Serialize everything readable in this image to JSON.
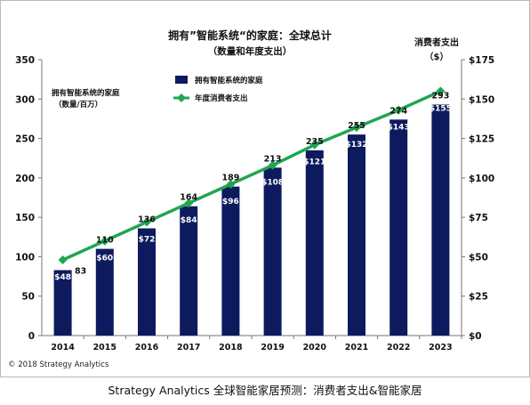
{
  "chart_data": {
    "type": "bar",
    "title": "拥有”智能系统“的家庭：全球总计",
    "subtitle": "（数量和年度支出）",
    "categories": [
      "2014",
      "2015",
      "2016",
      "2017",
      "2018",
      "2019",
      "2020",
      "2021",
      "2022",
      "2023"
    ],
    "series": [
      {
        "name": "拥有智能系统的家庭",
        "type": "bar",
        "axis": "left",
        "values": [
          83,
          110,
          136,
          164,
          189,
          213,
          235,
          255,
          274,
          293
        ],
        "labels": [
          "83",
          "110",
          "136",
          "164",
          "189",
          "213",
          "235",
          "255",
          "274",
          "293"
        ]
      },
      {
        "name": "年度消费者支出",
        "type": "line",
        "axis": "right",
        "values": [
          48,
          60,
          72,
          84,
          96,
          108,
          121,
          132,
          143,
          155
        ],
        "labels": [
          "$48",
          "$60",
          "$72",
          "$84",
          "$96",
          "$108",
          "$121",
          "$132",
          "$143",
          "$155"
        ]
      }
    ],
    "ylabel_left": [
      "拥有智能系统的家庭",
      "（数量/百万）"
    ],
    "ylabel_right": [
      "消费者支出",
      "（$）"
    ],
    "ylim_left": [
      0,
      350
    ],
    "ylim_right": [
      0,
      175
    ],
    "yticks_left": [
      "0",
      "50",
      "100",
      "150",
      "200",
      "250",
      "300",
      "350"
    ],
    "yticks_right": [
      "$0",
      "$25",
      "$50",
      "$75",
      "$100",
      "$125",
      "$150",
      "$175"
    ],
    "legend_position": "top-left",
    "grid": false,
    "copyright": "© 2018 Strategy Analytics",
    "colors": {
      "bar": "#0e1a5e",
      "line": "#1fa652",
      "marker": "#1fa652"
    }
  },
  "caption": "Strategy Analytics 全球智能家居预测：消费者支出&智能家居"
}
